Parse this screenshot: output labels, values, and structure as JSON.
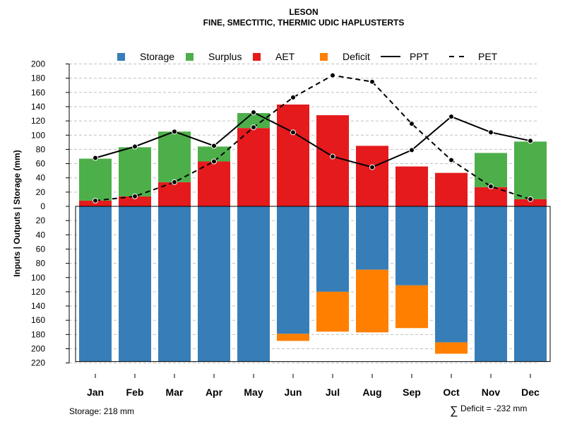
{
  "chart_data": {
    "type": "bar",
    "title": "LESON",
    "subtitle": "FINE, SMECTITIC, THERMIC UDIC HAPLUSTERTS",
    "ylabel": "Inputs | Outputs | Storage    (mm)",
    "categories": [
      "Jan",
      "Feb",
      "Mar",
      "Apr",
      "May",
      "Jun",
      "Jul",
      "Aug",
      "Sep",
      "Oct",
      "Nov",
      "Dec"
    ],
    "ylim": [
      -220,
      200
    ],
    "y_tick_values": [
      200,
      180,
      160,
      140,
      120,
      100,
      80,
      60,
      40,
      20,
      0,
      -20,
      -40,
      -60,
      -80,
      -100,
      -120,
      -140,
      -160,
      -180,
      -200,
      -220
    ],
    "y_tick_labels": [
      "200",
      "180",
      "160",
      "140",
      "120",
      "100",
      "80",
      "60",
      "40",
      "20",
      "0",
      "20",
      "40",
      "60",
      "80",
      "100",
      "120",
      "140",
      "160",
      "180",
      "200",
      "220"
    ],
    "legend": [
      {
        "name": "Storage",
        "type": "box",
        "color": "#377EB8"
      },
      {
        "name": "Surplus",
        "type": "box",
        "color": "#4DAF4A"
      },
      {
        "name": "AET",
        "type": "box",
        "color": "#E41A1C"
      },
      {
        "name": "Deficit",
        "type": "box",
        "color": "#FF7F00"
      },
      {
        "name": "PPT",
        "type": "solid"
      },
      {
        "name": "PET",
        "type": "dashed"
      }
    ],
    "series": {
      "AET": [
        8,
        14,
        34,
        63,
        110,
        143,
        128,
        85,
        56,
        47,
        27,
        10
      ],
      "Surplus": [
        59,
        69,
        71,
        21,
        21,
        0,
        0,
        0,
        0,
        0,
        48,
        81
      ],
      "Storage": [
        218,
        218,
        218,
        218,
        218,
        179,
        120,
        89,
        111,
        191,
        218,
        218
      ],
      "Deficit_range": [
        null,
        null,
        null,
        null,
        null,
        [
          179,
          189
        ],
        [
          120,
          176
        ],
        [
          89,
          177
        ],
        [
          111,
          171
        ],
        [
          191,
          207
        ],
        null,
        null
      ],
      "PPT": [
        68,
        84,
        105,
        85,
        132,
        104,
        70,
        55,
        79,
        126,
        104,
        92
      ],
      "PET": [
        8,
        14,
        34,
        63,
        111,
        153,
        184,
        175,
        116,
        65,
        28,
        10
      ]
    },
    "annotations": {
      "storage_text": "Storage: 218 mm",
      "deficit_symbol": "∑",
      "deficit_text": "Deficit = -232 mm"
    },
    "colors": {
      "storage": "#377EB8",
      "surplus": "#4DAF4A",
      "aet": "#E41A1C",
      "deficit": "#FF7F00",
      "grid": "#c0c0c0",
      "line": "#000000"
    }
  }
}
